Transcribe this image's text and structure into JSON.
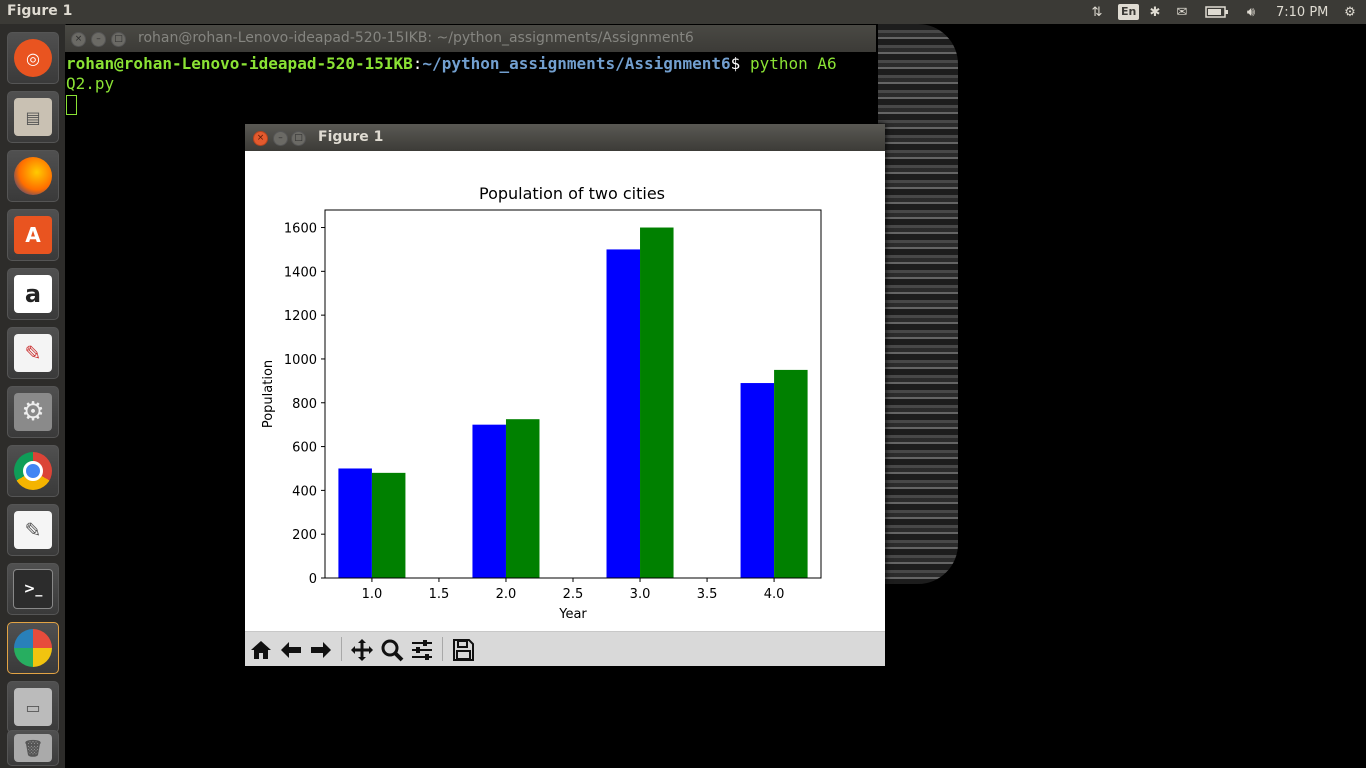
{
  "top_panel": {
    "app_title": "Figure 1",
    "keyboard_layout": "En",
    "clock": "7:10 PM"
  },
  "launcher": {
    "items": [
      {
        "name": "ubuntu-dash-icon"
      },
      {
        "name": "files-icon"
      },
      {
        "name": "firefox-icon"
      },
      {
        "name": "software-center-icon"
      },
      {
        "name": "amazon-icon"
      },
      {
        "name": "document-viewer-icon"
      },
      {
        "name": "system-settings-icon"
      },
      {
        "name": "chrome-icon"
      },
      {
        "name": "text-editor-icon"
      },
      {
        "name": "terminal-icon"
      },
      {
        "name": "python-figure-icon"
      },
      {
        "name": "disk-icon"
      },
      {
        "name": "trash-icon"
      }
    ]
  },
  "terminal": {
    "title": "rohan@rohan-Lenovo-ideapad-520-15IKB: ~/python_assignments/Assignment6",
    "prompt_user": "rohan@rohan-Lenovo-ideapad-520-15IKB",
    "prompt_sep": ":",
    "prompt_path": "~/python_assignments/Assignment6",
    "prompt_dollar": "$",
    "command_line1": " python A6",
    "command_line2": "Q2.py"
  },
  "figure_window": {
    "title": "Figure 1"
  },
  "chart_data": {
    "type": "bar",
    "title": "Population of two cities",
    "xlabel": "Year",
    "ylabel": "Population",
    "x": [
      1,
      2,
      3,
      4
    ],
    "series": [
      {
        "values": [
          500,
          700,
          1500,
          890
        ],
        "color": "#0000ff"
      },
      {
        "values": [
          480,
          725,
          1600,
          950
        ],
        "color": "#008000"
      }
    ],
    "xlim": [
      0.65,
      4.35
    ],
    "ylim": [
      0,
      1680
    ],
    "xticks": [
      {
        "v": 1.0,
        "label": "1.0"
      },
      {
        "v": 1.5,
        "label": "1.5"
      },
      {
        "v": 2.0,
        "label": "2.0"
      },
      {
        "v": 2.5,
        "label": "2.5"
      },
      {
        "v": 3.0,
        "label": "3.0"
      },
      {
        "v": 3.5,
        "label": "3.5"
      },
      {
        "v": 4.0,
        "label": "4.0"
      }
    ],
    "yticks": [
      {
        "v": 0,
        "label": "0"
      },
      {
        "v": 200,
        "label": "200"
      },
      {
        "v": 400,
        "label": "400"
      },
      {
        "v": 600,
        "label": "600"
      },
      {
        "v": 800,
        "label": "800"
      },
      {
        "v": 1000,
        "label": "1000"
      },
      {
        "v": 1200,
        "label": "1200"
      },
      {
        "v": 1400,
        "label": "1400"
      },
      {
        "v": 1600,
        "label": "1600"
      }
    ],
    "bar_width": 0.25,
    "grid": false
  }
}
